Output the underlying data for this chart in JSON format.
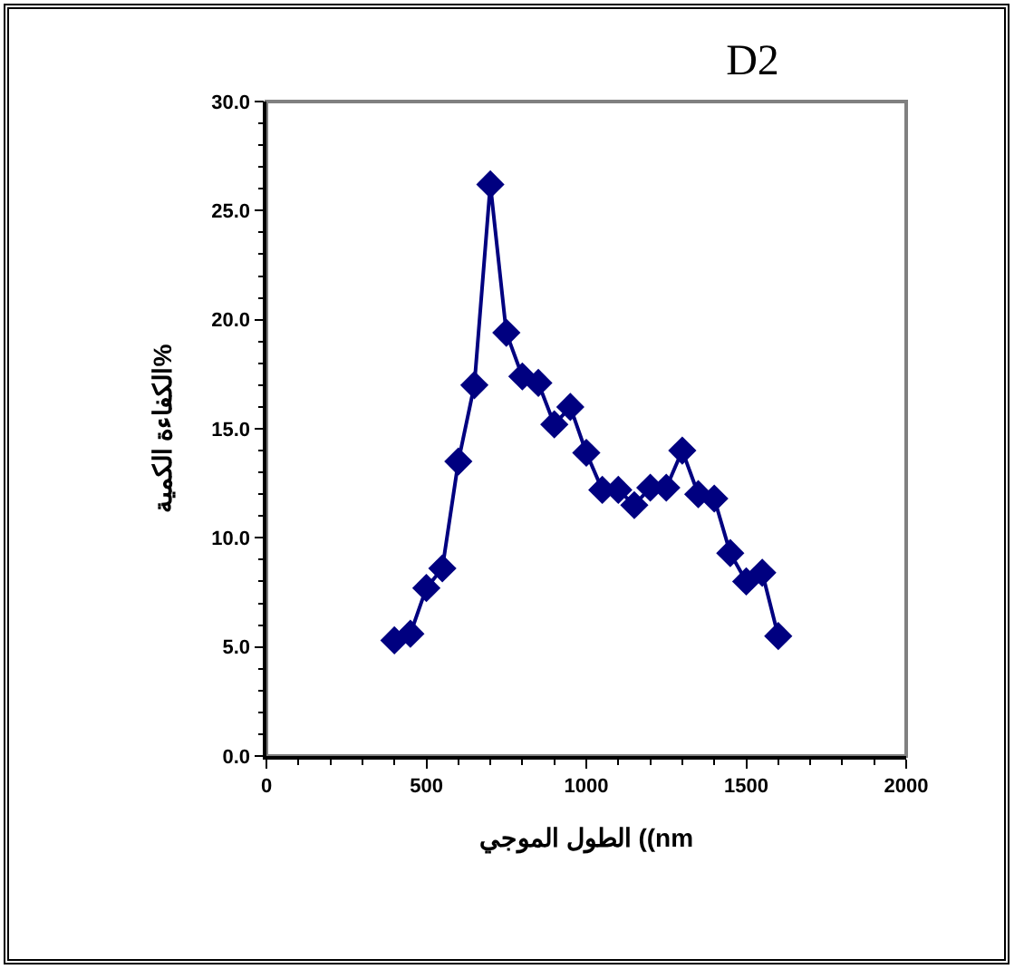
{
  "chart_data": {
    "type": "line",
    "title": "D2",
    "xlabel": "الطول الموجي ((nm",
    "ylabel": "الكفاءة الكمية%",
    "x": [
      400,
      450,
      500,
      550,
      600,
      650,
      700,
      750,
      800,
      850,
      900,
      950,
      1000,
      1050,
      1100,
      1150,
      1200,
      1250,
      1300,
      1350,
      1400,
      1450,
      1500,
      1550,
      1600
    ],
    "series": [
      {
        "color": "#000080",
        "values": [
          5.3,
          5.6,
          7.7,
          8.6,
          13.5,
          17.0,
          26.2,
          19.4,
          17.4,
          17.1,
          15.2,
          16.0,
          13.9,
          12.2,
          12.2,
          11.5,
          12.3,
          12.3,
          14.0,
          12.0,
          11.8,
          9.3,
          8.0,
          8.4,
          5.5
        ]
      }
    ],
    "xlim": [
      0,
      2000
    ],
    "xticks": [
      0,
      500,
      1000,
      1500,
      2000
    ],
    "ylim": [
      0,
      30
    ],
    "yticks": [
      {
        "value": 0,
        "label": "0.0"
      },
      {
        "value": 5,
        "label": "5.0"
      },
      {
        "value": 10,
        "label": "10.0"
      },
      {
        "value": 15,
        "label": "15.0"
      },
      {
        "value": 20,
        "label": "20.0"
      },
      {
        "value": 25,
        "label": "25.0"
      },
      {
        "value": 30,
        "label": "30.0"
      }
    ],
    "grid": false,
    "marker": "diamond",
    "line_style": "solid"
  }
}
